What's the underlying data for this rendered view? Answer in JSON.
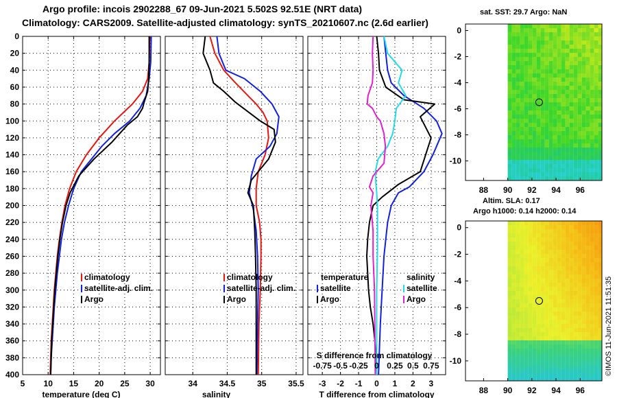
{
  "title_line1": "Argo profile: incois 2902288_67 09-Jun-2021 5.502S 92.51E (NRT data)",
  "title_line2": "Climatology: CARS2009. Satellite-adjusted climatology: synTS_20210607.nc (2.6d earlier)",
  "watermark": "©IMOS 11-Jun-2021 11:51:35",
  "colors": {
    "clim": "#e8150f",
    "sat": "#1020e0",
    "argo": "#000000",
    "sal_sat": "#22dde8",
    "sal_clim": "#e020d0"
  },
  "chart_data": [
    {
      "type": "line",
      "id": "temperature",
      "xlabel": "temperature (deg C)",
      "ylabel": "",
      "xlim": [
        5,
        32
      ],
      "ylim": [
        0,
        400
      ],
      "xticks": [
        "5",
        "10",
        "15",
        "20",
        "25",
        "30"
      ],
      "yticks": [
        "0",
        "20",
        "40",
        "60",
        "80",
        "100",
        "120",
        "140",
        "160",
        "180",
        "200",
        "220",
        "240",
        "260",
        "280",
        "300",
        "320",
        "340",
        "360",
        "380",
        "400"
      ],
      "legend": [
        "climatology",
        "satellite-adj. clim.",
        "Argo"
      ],
      "series": [
        {
          "name": "climatology",
          "color_key": "clim",
          "points": [
            [
              29.9,
              0
            ],
            [
              29.8,
              30
            ],
            [
              29.5,
              50
            ],
            [
              28.5,
              65
            ],
            [
              26.5,
              80
            ],
            [
              23,
              100
            ],
            [
              20,
              120
            ],
            [
              17.5,
              140
            ],
            [
              15.5,
              160
            ],
            [
              14.2,
              180
            ],
            [
              13.3,
              200
            ],
            [
              12.7,
              220
            ],
            [
              12.2,
              240
            ],
            [
              11.8,
              260
            ],
            [
              11.5,
              280
            ],
            [
              11.2,
              300
            ],
            [
              11,
              320
            ],
            [
              10.8,
              340
            ],
            [
              10.6,
              360
            ],
            [
              10.5,
              380
            ],
            [
              10.4,
              400
            ]
          ]
        },
        {
          "name": "satellite-adj. clim.",
          "color_key": "sat",
          "points": [
            [
              30.2,
              0
            ],
            [
              30.1,
              30
            ],
            [
              29.8,
              50
            ],
            [
              29.2,
              70
            ],
            [
              28,
              85
            ],
            [
              26,
              100
            ],
            [
              23,
              115
            ],
            [
              20.5,
              130
            ],
            [
              18.5,
              145
            ],
            [
              16.5,
              160
            ],
            [
              15,
              180
            ],
            [
              14,
              200
            ],
            [
              13.2,
              220
            ],
            [
              12.6,
              240
            ],
            [
              12.2,
              260
            ],
            [
              11.8,
              280
            ],
            [
              11.5,
              300
            ],
            [
              11.2,
              320
            ],
            [
              11,
              340
            ],
            [
              10.8,
              360
            ],
            [
              10.6,
              380
            ],
            [
              10.5,
              400
            ]
          ]
        },
        {
          "name": "Argo",
          "color_key": "argo",
          "points": [
            [
              29.8,
              0
            ],
            [
              29.8,
              30
            ],
            [
              29.7,
              50
            ],
            [
              29.5,
              65
            ],
            [
              28.8,
              78
            ],
            [
              28.5,
              85
            ],
            [
              27.5,
              95
            ],
            [
              25.5,
              105
            ],
            [
              22.5,
              125
            ],
            [
              19,
              145
            ],
            [
              16,
              165
            ],
            [
              14.3,
              185
            ],
            [
              13.5,
              200
            ],
            [
              12.8,
              220
            ],
            [
              12.3,
              240
            ],
            [
              11.9,
              260
            ],
            [
              11.6,
              280
            ],
            [
              11.3,
              300
            ],
            [
              11.1,
              320
            ],
            [
              10.9,
              340
            ],
            [
              10.7,
              360
            ],
            [
              10.6,
              380
            ],
            [
              10.5,
              400
            ]
          ]
        }
      ]
    },
    {
      "type": "line",
      "id": "salinity",
      "xlabel": "salinity",
      "ylabel": "",
      "xlim": [
        33.6,
        35.6
      ],
      "ylim": [
        0,
        400
      ],
      "xticks": [
        "34",
        "34.5",
        "35",
        "35.5"
      ],
      "legend": [
        "climatology",
        "satellite-adj. clim.",
        "Argo"
      ],
      "series": [
        {
          "name": "climatology",
          "color_key": "clim",
          "points": [
            [
              34.25,
              0
            ],
            [
              34.32,
              20
            ],
            [
              34.45,
              40
            ],
            [
              34.62,
              55
            ],
            [
              34.8,
              70
            ],
            [
              34.92,
              80
            ],
            [
              35.02,
              90
            ],
            [
              35.08,
              100
            ],
            [
              35.1,
              120
            ],
            [
              35.05,
              140
            ],
            [
              34.95,
              160
            ],
            [
              34.92,
              180
            ],
            [
              34.92,
              200
            ],
            [
              34.97,
              220
            ],
            [
              34.99,
              240
            ],
            [
              34.99,
              260
            ],
            [
              34.98,
              300
            ],
            [
              34.96,
              340
            ],
            [
              34.95,
              400
            ]
          ]
        },
        {
          "name": "satellite-adj. clim.",
          "color_key": "sat",
          "points": [
            [
              34.35,
              0
            ],
            [
              34.38,
              20
            ],
            [
              34.48,
              40
            ],
            [
              34.75,
              50
            ],
            [
              34.98,
              65
            ],
            [
              35.15,
              80
            ],
            [
              35.25,
              95
            ],
            [
              35.22,
              115
            ],
            [
              35.12,
              130
            ],
            [
              34.92,
              145
            ],
            [
              34.85,
              165
            ],
            [
              34.82,
              185
            ],
            [
              34.88,
              205
            ],
            [
              34.92,
              230
            ],
            [
              34.94,
              260
            ],
            [
              34.95,
              300
            ],
            [
              34.94,
              340
            ],
            [
              34.93,
              400
            ]
          ]
        },
        {
          "name": "Argo",
          "color_key": "argo",
          "points": [
            [
              34.18,
              0
            ],
            [
              34.15,
              20
            ],
            [
              34.25,
              40
            ],
            [
              34.3,
              55
            ],
            [
              34.45,
              65
            ],
            [
              34.62,
              78
            ],
            [
              34.98,
              100
            ],
            [
              35.18,
              110
            ],
            [
              35.2,
              125
            ],
            [
              35.1,
              145
            ],
            [
              34.85,
              170
            ],
            [
              34.8,
              185
            ],
            [
              34.88,
              200
            ],
            [
              34.9,
              230
            ],
            [
              34.91,
              260
            ],
            [
              34.92,
              300
            ],
            [
              34.92,
              340
            ],
            [
              34.92,
              400
            ]
          ]
        }
      ]
    },
    {
      "type": "line",
      "id": "difference",
      "xlabel": "T difference from climatology",
      "top_axis_label": "S difference from climatology",
      "xlim": [
        -3.8,
        3.8
      ],
      "ylim": [
        0,
        400
      ],
      "xticks": [
        "-3",
        "-2",
        "-1",
        "0",
        "1",
        "2",
        "3"
      ],
      "top_ticks": [
        "-0.75",
        "-0.5",
        "-0.25",
        "0",
        "0.25",
        "0.5",
        "0.75"
      ],
      "legend_temperature_title": "temperature",
      "legend_salinity_title": "salinity",
      "legend_temperature": [
        "satellite",
        "Argo"
      ],
      "legend_salinity": [
        "satellite",
        "Argo"
      ],
      "series": [
        {
          "name": "temperature satellite",
          "color_key": "sat",
          "points": [
            [
              0.4,
              0
            ],
            [
              0.5,
              20
            ],
            [
              0.6,
              40
            ],
            [
              0.8,
              55
            ],
            [
              1.5,
              70
            ],
            [
              2.6,
              85
            ],
            [
              3.3,
              100
            ],
            [
              3.6,
              115
            ],
            [
              3.1,
              140
            ],
            [
              2.6,
              160
            ],
            [
              1.8,
              178
            ],
            [
              1.2,
              185
            ],
            [
              0.8,
              200
            ],
            [
              0.6,
              220
            ],
            [
              0.5,
              240
            ],
            [
              0.4,
              260
            ],
            [
              0.3,
              300
            ],
            [
              0.2,
              340
            ],
            [
              0.1,
              400
            ]
          ]
        },
        {
          "name": "temperature Argo",
          "color_key": "argo",
          "points": [
            [
              0,
              0
            ],
            [
              0.1,
              20
            ],
            [
              0.15,
              40
            ],
            [
              0.5,
              60
            ],
            [
              1.5,
              75
            ],
            [
              3.2,
              80
            ],
            [
              2.4,
              95
            ],
            [
              3,
              120
            ],
            [
              2.7,
              140
            ],
            [
              2.4,
              160
            ],
            [
              1.2,
              175
            ],
            [
              0.3,
              190
            ],
            [
              -0.2,
              200
            ],
            [
              -0.4,
              220
            ],
            [
              -0.5,
              240
            ],
            [
              -0.55,
              260
            ],
            [
              -0.5,
              280
            ],
            [
              -0.45,
              300
            ],
            [
              -0.35,
              320
            ],
            [
              -0.2,
              340
            ],
            [
              -0.1,
              360
            ],
            [
              0,
              400
            ]
          ]
        },
        {
          "name": "salinity satellite",
          "color_key": "sal_sat",
          "points": [
            [
              0.1,
              0
            ],
            [
              0.15,
              20
            ],
            [
              0.35,
              40
            ],
            [
              0.3,
              55
            ],
            [
              0.4,
              70
            ],
            [
              0.27,
              85
            ],
            [
              0.25,
              100
            ],
            [
              0.22,
              115
            ],
            [
              0.15,
              130
            ],
            [
              0.02,
              145
            ],
            [
              -0.02,
              160
            ],
            [
              -0.01,
              175
            ],
            [
              0,
              185
            ],
            [
              0.01,
              200
            ],
            [
              0.01,
              250
            ],
            [
              0,
              300
            ],
            [
              0,
              400
            ]
          ]
        },
        {
          "name": "salinity Argo",
          "color_key": "sal_clim",
          "points": [
            [
              -0.05,
              0
            ],
            [
              -0.06,
              20
            ],
            [
              -0.05,
              40
            ],
            [
              -0.06,
              55
            ],
            [
              -0.12,
              70
            ],
            [
              -0.13,
              80
            ],
            [
              -0.06,
              85
            ],
            [
              0,
              95
            ],
            [
              0.05,
              100
            ],
            [
              0.1,
              115
            ],
            [
              0.12,
              130
            ],
            [
              0.1,
              150
            ],
            [
              -0.05,
              165
            ],
            [
              -0.1,
              178
            ],
            [
              -0.05,
              185
            ],
            [
              -0.08,
              200
            ],
            [
              -0.05,
              230
            ],
            [
              -0.05,
              260
            ],
            [
              -0.03,
              300
            ],
            [
              -0.02,
              400
            ]
          ]
        }
      ]
    },
    {
      "type": "heatmap",
      "id": "sst_map",
      "title": "sat. SST: 29.7 Argo: NaN",
      "xlim": [
        86.5,
        97.8
      ],
      "ylim": [
        -11.5,
        0.5
      ],
      "xticks": [
        "88",
        "90",
        "92",
        "94",
        "96"
      ],
      "yticks": [
        "0",
        "-2",
        "-4",
        "-6",
        "-8",
        "-10"
      ],
      "marker": [
        92.6,
        -5.5
      ]
    },
    {
      "type": "heatmap",
      "id": "sla_map",
      "title": "Altim. SLA: 0.17",
      "subtitle": "Argo h1000: 0.14 h2000: 0.14",
      "xlim": [
        86.5,
        97.8
      ],
      "ylim": [
        -11.5,
        0.5
      ],
      "xticks": [
        "88",
        "90",
        "92",
        "94",
        "96"
      ],
      "yticks": [
        "0",
        "-2",
        "-4",
        "-6",
        "-8",
        "-10"
      ],
      "marker": [
        92.6,
        -5.5
      ]
    }
  ]
}
